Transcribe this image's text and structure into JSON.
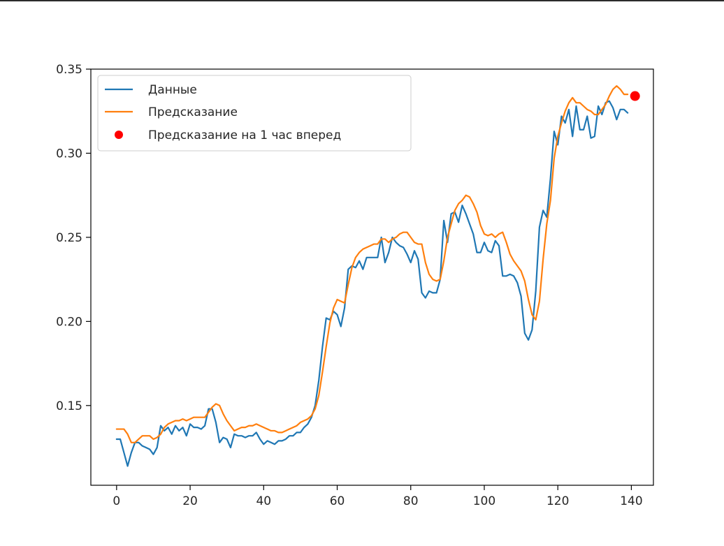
{
  "chart_data": {
    "type": "line",
    "title": "",
    "xlabel": "",
    "ylabel": "",
    "xlim": [
      -7,
      146
    ],
    "ylim": [
      0.1026,
      0.35
    ],
    "xticks": [
      0,
      20,
      40,
      60,
      80,
      100,
      120,
      140
    ],
    "yticks": [
      0.15,
      0.2,
      0.25,
      0.3,
      0.35
    ],
    "grid": false,
    "legend_position": "top-left",
    "series": [
      {
        "name": "Данные",
        "color": "#1f77b4",
        "x": [
          0,
          1,
          2,
          3,
          4,
          5,
          6,
          7,
          8,
          9,
          10,
          11,
          12,
          13,
          14,
          15,
          16,
          17,
          18,
          19,
          20,
          21,
          22,
          23,
          24,
          25,
          26,
          27,
          28,
          29,
          30,
          31,
          32,
          33,
          34,
          35,
          36,
          37,
          38,
          39,
          40,
          41,
          42,
          43,
          44,
          45,
          46,
          47,
          48,
          49,
          50,
          51,
          52,
          53,
          54,
          55,
          56,
          57,
          58,
          59,
          60,
          61,
          62,
          63,
          64,
          65,
          66,
          67,
          68,
          69,
          70,
          71,
          72,
          73,
          74,
          75,
          76,
          77,
          78,
          79,
          80,
          81,
          82,
          83,
          84,
          85,
          86,
          87,
          88,
          89,
          90,
          91,
          92,
          93,
          94,
          95,
          96,
          97,
          98,
          99,
          100,
          101,
          102,
          103,
          104,
          105,
          106,
          107,
          108,
          109,
          110,
          111,
          112,
          113,
          114,
          115,
          116,
          117,
          118,
          119,
          120,
          121,
          122,
          123,
          124,
          125,
          126,
          127,
          128,
          129,
          130,
          131,
          132,
          133,
          134,
          135,
          136,
          137,
          138,
          139
        ],
        "y": [
          0.13,
          0.13,
          0.122,
          0.114,
          0.122,
          0.128,
          0.128,
          0.126,
          0.125,
          0.124,
          0.121,
          0.125,
          0.138,
          0.135,
          0.137,
          0.133,
          0.138,
          0.135,
          0.137,
          0.132,
          0.139,
          0.137,
          0.137,
          0.136,
          0.138,
          0.148,
          0.148,
          0.14,
          0.128,
          0.131,
          0.13,
          0.125,
          0.133,
          0.132,
          0.132,
          0.131,
          0.132,
          0.132,
          0.134,
          0.13,
          0.127,
          0.129,
          0.128,
          0.127,
          0.129,
          0.129,
          0.13,
          0.132,
          0.132,
          0.134,
          0.134,
          0.137,
          0.139,
          0.143,
          0.15,
          0.165,
          0.185,
          0.202,
          0.201,
          0.206,
          0.204,
          0.197,
          0.208,
          0.231,
          0.233,
          0.232,
          0.236,
          0.231,
          0.238,
          0.238,
          0.238,
          0.238,
          0.25,
          0.235,
          0.241,
          0.25,
          0.247,
          0.245,
          0.244,
          0.24,
          0.235,
          0.242,
          0.237,
          0.217,
          0.214,
          0.218,
          0.217,
          0.217,
          0.225,
          0.26,
          0.247,
          0.264,
          0.265,
          0.259,
          0.269,
          0.264,
          0.258,
          0.252,
          0.241,
          0.241,
          0.247,
          0.242,
          0.241,
          0.248,
          0.245,
          0.227,
          0.227,
          0.228,
          0.227,
          0.223,
          0.215,
          0.193,
          0.189,
          0.195,
          0.218,
          0.256,
          0.266,
          0.262,
          0.285,
          0.313,
          0.305,
          0.322,
          0.318,
          0.326,
          0.31,
          0.328,
          0.314,
          0.314,
          0.322,
          0.309,
          0.31,
          0.328,
          0.323,
          0.33,
          0.331,
          0.327,
          0.32,
          0.326,
          0.326,
          0.324
        ]
      },
      {
        "name": "Предсказание",
        "color": "#ff7f0e",
        "x": [
          0,
          1,
          2,
          3,
          4,
          5,
          6,
          7,
          8,
          9,
          10,
          11,
          12,
          13,
          14,
          15,
          16,
          17,
          18,
          19,
          20,
          21,
          22,
          23,
          24,
          25,
          26,
          27,
          28,
          29,
          30,
          31,
          32,
          33,
          34,
          35,
          36,
          37,
          38,
          39,
          40,
          41,
          42,
          43,
          44,
          45,
          46,
          47,
          48,
          49,
          50,
          51,
          52,
          53,
          54,
          55,
          56,
          57,
          58,
          59,
          60,
          61,
          62,
          63,
          64,
          65,
          66,
          67,
          68,
          69,
          70,
          71,
          72,
          73,
          74,
          75,
          76,
          77,
          78,
          79,
          80,
          81,
          82,
          83,
          84,
          85,
          86,
          87,
          88,
          89,
          90,
          91,
          92,
          93,
          94,
          95,
          96,
          97,
          98,
          99,
          100,
          101,
          102,
          103,
          104,
          105,
          106,
          107,
          108,
          109,
          110,
          111,
          112,
          113,
          114,
          115,
          116,
          117,
          118,
          119,
          120,
          121,
          122,
          123,
          124,
          125,
          126,
          127,
          128,
          129,
          130,
          131,
          132,
          133,
          134,
          135,
          136,
          137,
          138,
          139
        ],
        "y": [
          0.136,
          0.136,
          0.136,
          0.133,
          0.128,
          0.128,
          0.13,
          0.132,
          0.132,
          0.132,
          0.13,
          0.131,
          0.133,
          0.137,
          0.139,
          0.14,
          0.141,
          0.141,
          0.142,
          0.141,
          0.142,
          0.143,
          0.143,
          0.143,
          0.143,
          0.146,
          0.149,
          0.151,
          0.15,
          0.145,
          0.141,
          0.138,
          0.135,
          0.136,
          0.137,
          0.137,
          0.138,
          0.138,
          0.139,
          0.138,
          0.137,
          0.136,
          0.135,
          0.135,
          0.134,
          0.134,
          0.135,
          0.136,
          0.137,
          0.138,
          0.14,
          0.141,
          0.142,
          0.144,
          0.148,
          0.156,
          0.17,
          0.185,
          0.199,
          0.208,
          0.213,
          0.212,
          0.211,
          0.222,
          0.232,
          0.238,
          0.241,
          0.243,
          0.244,
          0.245,
          0.246,
          0.246,
          0.249,
          0.249,
          0.247,
          0.249,
          0.25,
          0.252,
          0.253,
          0.253,
          0.25,
          0.247,
          0.246,
          0.246,
          0.235,
          0.228,
          0.225,
          0.224,
          0.225,
          0.236,
          0.25,
          0.258,
          0.266,
          0.27,
          0.272,
          0.275,
          0.274,
          0.27,
          0.265,
          0.257,
          0.252,
          0.251,
          0.252,
          0.25,
          0.252,
          0.253,
          0.247,
          0.24,
          0.236,
          0.233,
          0.23,
          0.224,
          0.213,
          0.204,
          0.201,
          0.212,
          0.237,
          0.258,
          0.272,
          0.297,
          0.31,
          0.318,
          0.325,
          0.33,
          0.333,
          0.33,
          0.33,
          0.328,
          0.326,
          0.325,
          0.323,
          0.323,
          0.326,
          0.329,
          0.334,
          0.338,
          0.34,
          0.338,
          0.335,
          0.335
        ]
      }
    ],
    "points": [
      {
        "name": "Предсказание на 1 час вперед",
        "color": "#ff0000",
        "x": 141,
        "y": 0.334
      }
    ]
  }
}
